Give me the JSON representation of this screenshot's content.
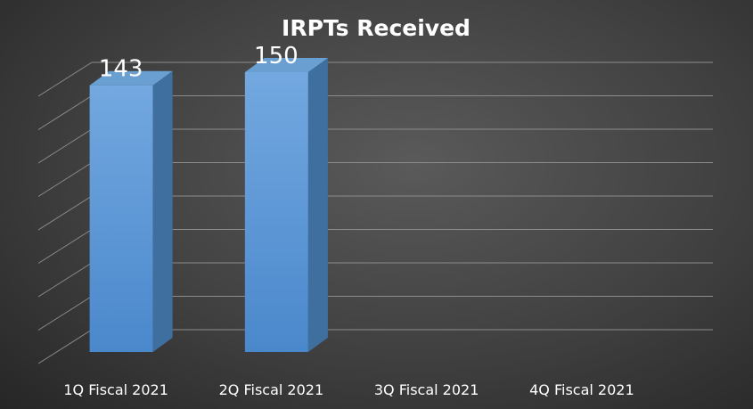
{
  "chart_data": {
    "type": "bar",
    "title": "IRPTs Received",
    "categories": [
      "1Q Fiscal 2021",
      "2Q Fiscal 2021",
      "3Q Fiscal 2021",
      "4Q Fiscal 2021"
    ],
    "values": [
      143,
      150,
      null,
      null
    ],
    "data_labels": [
      "143",
      "150",
      "",
      ""
    ],
    "ylim": [
      0,
      160
    ],
    "y_tick_step": 20,
    "xlabel": "",
    "ylabel": "",
    "grid": true,
    "legend": "none",
    "style": "3d-column",
    "colors": {
      "bar_front": "#5b9bd5",
      "bar_side": "#3f6f9f",
      "bar_top": "#6a9fd2",
      "grid": "#8c8c8c",
      "text": "#ffffff"
    }
  }
}
